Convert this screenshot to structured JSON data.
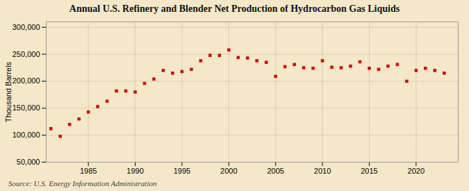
{
  "chart_data": {
    "type": "scatter",
    "title": "Annual U.S. Refinery and Blender Net Production of Hydrocarbon Gas Liquids",
    "ylabel": "Thousand Barrels",
    "source": "Source: U.S. Energy Information Administration",
    "x": [
      1981,
      1982,
      1983,
      1984,
      1985,
      1986,
      1987,
      1988,
      1989,
      1990,
      1991,
      1992,
      1993,
      1994,
      1995,
      1996,
      1997,
      1998,
      1999,
      2000,
      2001,
      2002,
      2003,
      2004,
      2005,
      2006,
      2007,
      2008,
      2009,
      2010,
      2011,
      2012,
      2013,
      2014,
      2015,
      2016,
      2017,
      2018,
      2019,
      2020,
      2021,
      2022,
      2023
    ],
    "values": [
      112000,
      98000,
      120000,
      130000,
      143000,
      153000,
      163000,
      182000,
      182000,
      180000,
      196000,
      204000,
      220000,
      215000,
      218000,
      222000,
      238000,
      248000,
      248000,
      258000,
      244000,
      243000,
      238000,
      235000,
      209000,
      227000,
      231000,
      225000,
      224000,
      238000,
      226000,
      225000,
      228000,
      236000,
      224000,
      222000,
      228000,
      231000,
      200000,
      220000,
      224000,
      220000,
      215000
    ],
    "color": "#cc1111",
    "marker": "square",
    "xlim": [
      1980.5,
      2024.5
    ],
    "xticks": [
      1985,
      1990,
      1995,
      2000,
      2005,
      2010,
      2015,
      2020
    ],
    "ylim": [
      50000,
      310000
    ],
    "yticks": [
      {
        "value": 50000,
        "label": "50,000"
      },
      {
        "value": 100000,
        "label": "100,000"
      },
      {
        "value": 150000,
        "label": "150,000"
      },
      {
        "value": 200000,
        "label": "200,000"
      },
      {
        "value": 250000,
        "label": "250,000"
      },
      {
        "value": 300000,
        "label": "300,000"
      }
    ],
    "grid": true
  }
}
